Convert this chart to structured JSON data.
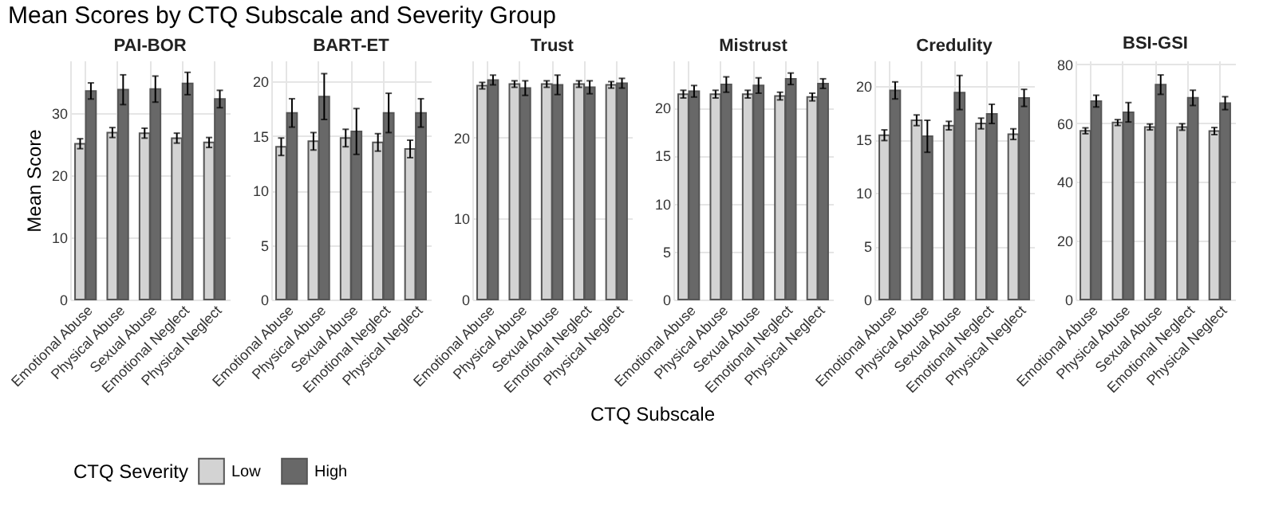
{
  "chart_data": [
    {
      "type": "bar",
      "title": "PAI-BOR",
      "annotations": [
        "Mean Scores by CTQ Subscale and Severity Group",
        "CTQ Subscale"
      ],
      "ylabel": "Mean Score",
      "legend_title": "CTQ Severity",
      "legend": "bottom",
      "grid": true,
      "categories": [
        "Emotional Abuse",
        "Physical Abuse",
        "Sexual Abuse",
        "Emotional Neglect",
        "Physical Neglect"
      ],
      "ylim": [
        0,
        38.5
      ],
      "yticks": [
        0,
        10,
        20,
        30
      ],
      "series": [
        {
          "name": "Low",
          "color": "#d3d3d3",
          "values": [
            25.1,
            26.9,
            26.8,
            26.0,
            25.3
          ],
          "errors": [
            0.8,
            0.8,
            0.8,
            0.8,
            0.8
          ]
        },
        {
          "name": "High",
          "color": "#686868",
          "values": [
            33.6,
            33.8,
            33.9,
            34.8,
            32.3
          ],
          "errors": [
            1.3,
            2.4,
            2.1,
            1.8,
            1.4
          ]
        }
      ]
    },
    {
      "type": "bar",
      "title": "BART-ET",
      "grid": true,
      "categories": [
        "Emotional Abuse",
        "Physical Abuse",
        "Sexual Abuse",
        "Emotional Neglect",
        "Physical Neglect"
      ],
      "ylim": [
        0,
        21.9
      ],
      "yticks": [
        0,
        5,
        10,
        15,
        20
      ],
      "series": [
        {
          "name": "Low",
          "color": "#d3d3d3",
          "values": [
            14.0,
            14.5,
            14.8,
            14.4,
            13.8
          ],
          "errors": [
            0.8,
            0.8,
            0.8,
            0.8,
            0.8
          ]
        },
        {
          "name": "High",
          "color": "#686868",
          "values": [
            17.1,
            18.6,
            15.4,
            17.1,
            17.1
          ],
          "errors": [
            1.3,
            2.1,
            2.1,
            1.8,
            1.3
          ]
        }
      ]
    },
    {
      "type": "bar",
      "title": "Trust",
      "grid": true,
      "categories": [
        "Emotional Abuse",
        "Physical Abuse",
        "Sexual Abuse",
        "Emotional Neglect",
        "Physical Neglect"
      ],
      "ylim": [
        0,
        29.5
      ],
      "yticks": [
        0,
        10,
        20
      ],
      "series": [
        {
          "name": "Low",
          "color": "#d3d3d3",
          "values": [
            26.4,
            26.6,
            26.6,
            26.6,
            26.5
          ],
          "errors": [
            0.4,
            0.4,
            0.4,
            0.4,
            0.4
          ]
        },
        {
          "name": "High",
          "color": "#686868",
          "values": [
            27.1,
            26.1,
            26.5,
            26.2,
            26.7
          ],
          "errors": [
            0.6,
            0.9,
            1.2,
            0.8,
            0.6
          ]
        }
      ]
    },
    {
      "type": "bar",
      "title": "Mistrust",
      "grid": true,
      "categories": [
        "Emotional Abuse",
        "Physical Abuse",
        "Sexual Abuse",
        "Emotional Neglect",
        "Physical Neglect"
      ],
      "ylim": [
        0,
        24.9
      ],
      "yticks": [
        0,
        5,
        10,
        15,
        20
      ],
      "series": [
        {
          "name": "Low",
          "color": "#d3d3d3",
          "values": [
            21.4,
            21.4,
            21.4,
            21.2,
            21.1
          ],
          "errors": [
            0.4,
            0.4,
            0.4,
            0.4,
            0.4
          ]
        },
        {
          "name": "High",
          "color": "#686868",
          "values": [
            21.7,
            22.4,
            22.3,
            23.0,
            22.5
          ],
          "errors": [
            0.6,
            0.8,
            0.8,
            0.6,
            0.5
          ]
        }
      ]
    },
    {
      "type": "bar",
      "title": "Credulity",
      "grid": true,
      "categories": [
        "Emotional Abuse",
        "Physical Abuse",
        "Sexual Abuse",
        "Emotional Neglect",
        "Physical Neglect"
      ],
      "ylim": [
        0,
        22.4
      ],
      "yticks": [
        0,
        5,
        10,
        15,
        20
      ],
      "series": [
        {
          "name": "Low",
          "color": "#d3d3d3",
          "values": [
            15.4,
            16.8,
            16.3,
            16.5,
            15.5
          ],
          "errors": [
            0.5,
            0.5,
            0.4,
            0.5,
            0.5
          ]
        },
        {
          "name": "High",
          "color": "#686868",
          "values": [
            19.6,
            15.3,
            19.4,
            17.4,
            18.9
          ],
          "errors": [
            0.8,
            1.5,
            1.6,
            0.9,
            0.8
          ]
        }
      ]
    },
    {
      "type": "bar",
      "title": "BSI-GSI",
      "grid": true,
      "categories": [
        "Emotional Abuse",
        "Physical Abuse",
        "Sexual Abuse",
        "Emotional Neglect",
        "Physical Neglect"
      ],
      "ylim": [
        0,
        81.3
      ],
      "yticks": [
        0,
        20,
        40,
        60,
        80
      ],
      "series": [
        {
          "name": "Low",
          "color": "#d3d3d3",
          "values": [
            57.4,
            60.2,
            58.7,
            58.7,
            57.3
          ],
          "errors": [
            1.0,
            1.0,
            1.0,
            1.1,
            1.2
          ]
        },
        {
          "name": "High",
          "color": "#686868",
          "values": [
            67.5,
            63.7,
            73.1,
            68.6,
            66.8
          ],
          "errors": [
            2.0,
            3.3,
            3.3,
            2.6,
            2.2
          ]
        }
      ]
    }
  ]
}
